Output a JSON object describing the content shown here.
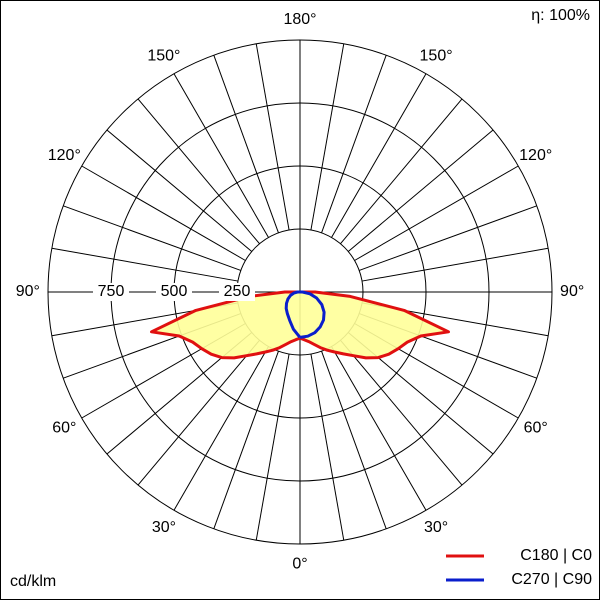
{
  "chart_data": {
    "type": "polar",
    "efficiency": "η: 100%",
    "unit": "cd/klm",
    "rlim": [
      0,
      1000
    ],
    "rticks": [
      250,
      500,
      750
    ],
    "angle_gridlines": [
      0,
      10,
      20,
      30,
      40,
      50,
      60,
      70,
      80,
      90,
      100,
      110,
      120,
      130,
      140,
      150,
      160,
      170,
      180
    ],
    "angle_ticks": [
      {
        "value": 0,
        "label": "0°"
      },
      {
        "value": 30,
        "label": "30°"
      },
      {
        "value": 60,
        "label": "60°"
      },
      {
        "value": 90,
        "label": "90°"
      },
      {
        "value": 120,
        "label": "120°"
      },
      {
        "value": 150,
        "label": "150°"
      },
      {
        "value": 180,
        "label": "180°"
      }
    ],
    "series": [
      {
        "name": "C180 | C0",
        "color": "#e01010",
        "fill": "#ffff99",
        "angles": [
          0,
          5,
          10,
          15,
          20,
          25,
          30,
          35,
          40,
          45,
          50,
          55,
          60,
          65,
          70,
          75,
          80,
          85,
          90,
          95
        ],
        "right_values": [
          183,
          190,
          200,
          215,
          235,
          255,
          275,
          300,
          330,
          370,
          405,
          430,
          450,
          470,
          510,
          610,
          420,
          200,
          60,
          0
        ],
        "left_values": [
          183,
          190,
          200,
          215,
          235,
          255,
          275,
          300,
          330,
          370,
          405,
          430,
          450,
          470,
          510,
          610,
          420,
          200,
          60,
          0
        ]
      },
      {
        "name": "C270 | C90",
        "color": "#0a1ecc",
        "angles": [
          0,
          10,
          20,
          30,
          40,
          50,
          60,
          70,
          80,
          90,
          95
        ],
        "right_values": [
          180,
          178,
          172,
          160,
          145,
          125,
          100,
          70,
          40,
          10,
          0
        ],
        "left_values": [
          180,
          150,
          120,
          100,
          85,
          70,
          55,
          40,
          25,
          10,
          0
        ]
      }
    ]
  }
}
